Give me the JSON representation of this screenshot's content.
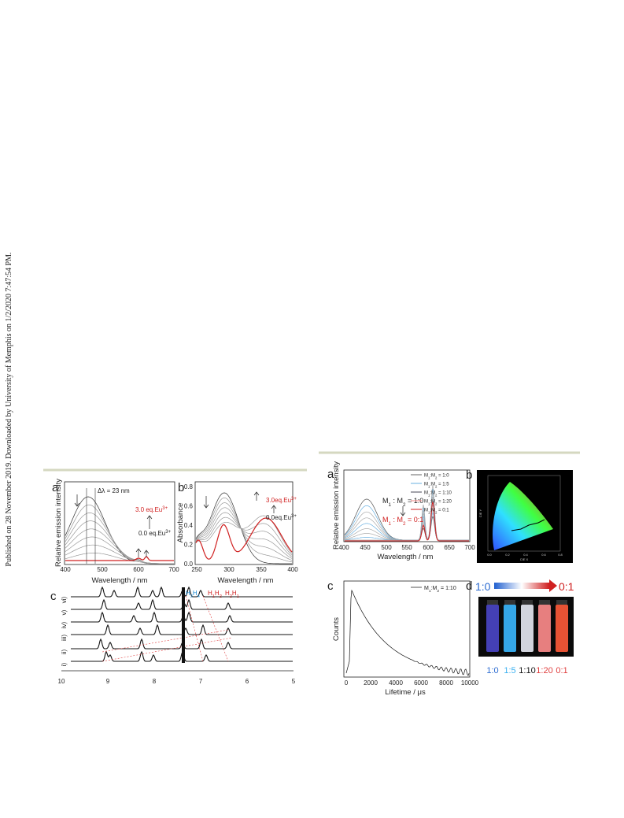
{
  "margin_note": "Published on 28 November 2019. Downloaded by University of Memphis on 1/2/2020 7:47:54 PM.",
  "figure_left": {
    "panel_a": {
      "label": "a",
      "y_label": "Relative emission intensity",
      "x_label": "Wavelength / nm",
      "x_ticks": [
        "400",
        "500",
        "600",
        "700"
      ],
      "delta": "Δλ = 23 nm",
      "high_eq": "3.0 eq.Eu",
      "low_eq": "0.0 eq.Eu",
      "charge": "3+"
    },
    "panel_b": {
      "label": "b",
      "y_label": "Absorbance",
      "x_label": "Wavelength / nm",
      "x_ticks": [
        "250",
        "300",
        "350",
        "400"
      ],
      "y_ticks": [
        "0.0",
        "0.2",
        "0.4",
        "0.6",
        "0.8"
      ],
      "high_eq": "3.0eq.Eu",
      "low_eq": "0.0eq.Eu",
      "charge": "3+"
    },
    "panel_c": {
      "label": "c",
      "x_ticks": [
        "10",
        "9",
        "8",
        "7",
        "6",
        "5"
      ],
      "rows": [
        "vi)",
        "v)",
        "iv)",
        "iii)",
        "ii)",
        "i)"
      ],
      "proton_blue": [
        "H",
        "3",
        "H",
        "4"
      ],
      "proton_red_a": [
        "H",
        "1",
        "H",
        "2"
      ],
      "proton_red_b": [
        "H",
        "2",
        "H",
        "1"
      ]
    }
  },
  "figure_right": {
    "panel_a": {
      "label": "a",
      "y_label": "Relative emission intensity",
      "x_label": "Wavelength / nm",
      "x_ticks": [
        "400",
        "450",
        "500",
        "550",
        "600",
        "650",
        "700"
      ],
      "legend": [
        [
          "M",
          "1",
          ":",
          "M",
          "2",
          " = 1:0"
        ],
        [
          "M",
          "1",
          ":",
          "M",
          "2",
          " = 1:5"
        ],
        [
          "M",
          "1",
          ":",
          "M",
          "2",
          " = 1:10"
        ],
        [
          "M",
          "1",
          ":",
          "M",
          "2",
          " = 1:20"
        ],
        [
          "M",
          "1",
          ":",
          "M",
          "2",
          " = 0:1"
        ]
      ],
      "ratio_start": [
        "M",
        "1",
        " : ",
        "M",
        "2",
        " = 1:0"
      ],
      "ratio_end": [
        "M",
        "1",
        " : ",
        "M",
        "2",
        " = 0:1"
      ]
    },
    "panel_b": {
      "label": "b",
      "x_label": "CIE X",
      "y_label": "CIE Y",
      "x_ticks": [
        "0.0",
        "0.2",
        "0.4",
        "0.6",
        "0.8"
      ]
    },
    "panel_c": {
      "label": "c",
      "y_label": "Counts",
      "x_label": "Lifetime / μs",
      "x_ticks": [
        "0",
        "2000",
        "4000",
        "6000",
        "8000",
        "10000"
      ],
      "legend": [
        "M",
        "1",
        ":",
        "M",
        "2",
        " = 1:10"
      ]
    },
    "panel_d": {
      "label": "d",
      "bar_start": "1:0",
      "bar_end": "0:1",
      "samples": [
        "1:0",
        "1:5",
        "1:10",
        "1:20",
        "0:1"
      ]
    }
  }
}
